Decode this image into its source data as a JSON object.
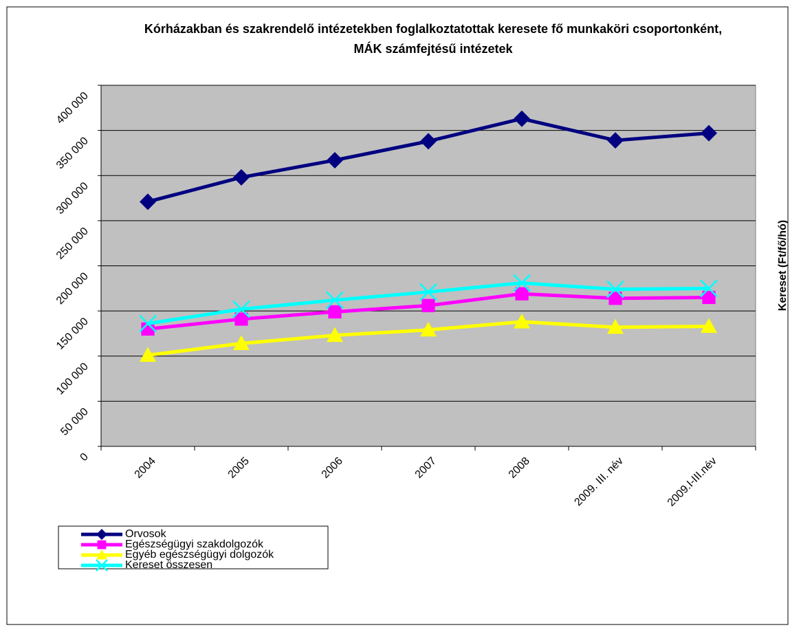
{
  "chart_data": {
    "type": "line",
    "title": "Kórházakban és szakrendelő intézetekben foglalkoztatottak keresete fő munkaköri csoportonként, MÁK számfejtésű intézetek",
    "y_label": "Kereset (Ft/fő/hó)",
    "categories": [
      "2004",
      "2005",
      "2006",
      "2007",
      "2008",
      "2009. III. név",
      "2009.I-III.név"
    ],
    "series": [
      {
        "name": "Orvosok",
        "color": "#000080",
        "marker": "diamond",
        "values": [
          271000,
          298000,
          317000,
          338000,
          363000,
          339000,
          347000
        ]
      },
      {
        "name": "Egészségügyi szakdolgozók",
        "color": "#ff00ff",
        "marker": "square",
        "values": [
          130000,
          141000,
          149000,
          156000,
          169000,
          164000,
          165000
        ]
      },
      {
        "name": "Egyéb egészségügyi dolgozók",
        "color": "#ffff00",
        "marker": "triangle",
        "values": [
          101000,
          114000,
          123000,
          129000,
          138000,
          132000,
          133000
        ]
      },
      {
        "name": "Kereset összesen",
        "color": "#00ffff",
        "marker": "x",
        "values": [
          136000,
          152000,
          162000,
          171000,
          181000,
          174000,
          175000
        ]
      }
    ],
    "ylim": [
      0,
      400000
    ],
    "yticks": [
      0,
      {
        "value": 50000,
        "label": "50 000"
      },
      {
        "value": 100000,
        "label": "100 000"
      },
      {
        "value": 150000,
        "label": "150 000"
      },
      {
        "value": 200000,
        "label": "200 000"
      },
      {
        "value": 250000,
        "label": "250 000"
      },
      {
        "value": 300000,
        "label": "300 000"
      },
      {
        "value": 350000,
        "label": "350 000"
      },
      {
        "value": 400000,
        "label": "400 000"
      }
    ],
    "grid": true,
    "legend": "bottom-left"
  }
}
